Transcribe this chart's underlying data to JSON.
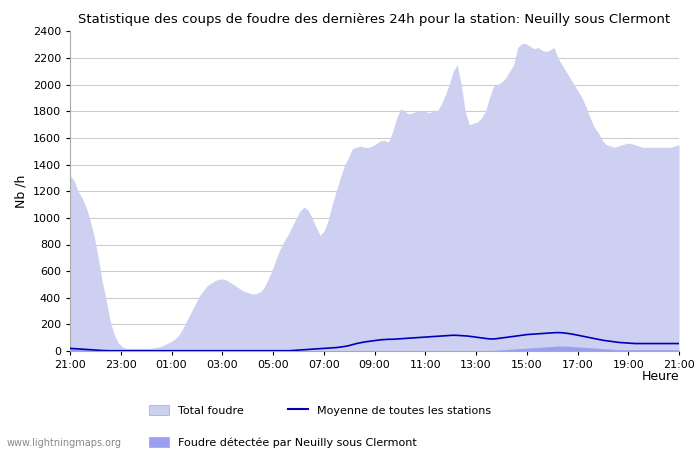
{
  "title": "Statistique des coups de foudre des dernières 24h pour la station: Neuilly sous Clermont",
  "xlabel": "Heure",
  "ylabel": "Nb /h",
  "xlim": [
    0,
    24
  ],
  "ylim": [
    0,
    2400
  ],
  "yticks": [
    0,
    200,
    400,
    600,
    800,
    1000,
    1200,
    1400,
    1600,
    1800,
    2000,
    2200,
    2400
  ],
  "xtick_labels": [
    "21:00",
    "23:00",
    "01:00",
    "03:00",
    "05:00",
    "07:00",
    "09:00",
    "11:00",
    "13:00",
    "15:00",
    "17:00",
    "19:00",
    "21:00"
  ],
  "xtick_positions": [
    0,
    2,
    4,
    6,
    8,
    10,
    12,
    14,
    16,
    18,
    20,
    22,
    24
  ],
  "bg_color": "#ffffff",
  "grid_color": "#cccccc",
  "total_color": "#cdd0f0",
  "local_color": "#9aa0f0",
  "mean_color": "#0000bb",
  "watermark": "www.lightningmaps.org",
  "total_foudre": [
    1320,
    1280,
    1200,
    1150,
    1080,
    980,
    860,
    700,
    520,
    380,
    220,
    120,
    60,
    30,
    20,
    20,
    20,
    20,
    20,
    20,
    20,
    25,
    30,
    40,
    55,
    70,
    90,
    120,
    170,
    230,
    290,
    350,
    410,
    450,
    490,
    510,
    530,
    540,
    540,
    530,
    510,
    490,
    470,
    450,
    440,
    430,
    430,
    440,
    470,
    530,
    600,
    680,
    760,
    820,
    870,
    930,
    990,
    1050,
    1080,
    1060,
    1000,
    930,
    870,
    900,
    980,
    1100,
    1200,
    1300,
    1390,
    1450,
    1520,
    1530,
    1540,
    1530,
    1530,
    1540,
    1560,
    1580,
    1580,
    1570,
    1650,
    1750,
    1820,
    1800,
    1780,
    1790,
    1800,
    1800,
    1800,
    1790,
    1800,
    1800,
    1850,
    1920,
    2000,
    2100,
    2150,
    2000,
    1800,
    1700,
    1710,
    1720,
    1750,
    1800,
    1900,
    1990,
    2000,
    2020,
    2050,
    2100,
    2150,
    2280,
    2310,
    2310,
    2290,
    2270,
    2280,
    2260,
    2250,
    2260,
    2280,
    2200,
    2150,
    2100,
    2050,
    2000,
    1950,
    1900,
    1830,
    1750,
    1680,
    1640,
    1580,
    1550,
    1540,
    1530,
    1540,
    1550,
    1560,
    1560,
    1550,
    1540,
    1530,
    1530,
    1530,
    1530,
    1530,
    1530,
    1530,
    1530,
    1540,
    1550
  ],
  "local_foudre": [
    20,
    18,
    16,
    14,
    12,
    10,
    8,
    6,
    4,
    3,
    2,
    2,
    2,
    2,
    2,
    2,
    2,
    2,
    2,
    2,
    2,
    2,
    2,
    2,
    2,
    2,
    2,
    2,
    2,
    2,
    2,
    2,
    2,
    2,
    2,
    2,
    2,
    2,
    2,
    2,
    2,
    2,
    2,
    2,
    2,
    2,
    2,
    2,
    2,
    2,
    2,
    2,
    2,
    2,
    2,
    2,
    2,
    2,
    2,
    2,
    2,
    2,
    2,
    2,
    2,
    2,
    2,
    2,
    2,
    2,
    2,
    2,
    2,
    2,
    2,
    2,
    2,
    2,
    2,
    2,
    2,
    2,
    2,
    2,
    2,
    2,
    2,
    2,
    2,
    2,
    2,
    2,
    2,
    2,
    2,
    2,
    2,
    2,
    2,
    2,
    2,
    2,
    2,
    2,
    2,
    2,
    4,
    6,
    8,
    10,
    12,
    14,
    16,
    18,
    20,
    22,
    24,
    26,
    28,
    30,
    32,
    34,
    36,
    38,
    38,
    36,
    34,
    32,
    30,
    28,
    26,
    24,
    22,
    20,
    18,
    16,
    14,
    12,
    10,
    10,
    10,
    10,
    10,
    10,
    10,
    10,
    10,
    10,
    10,
    10,
    10,
    10,
    10,
    10
  ],
  "mean_foudre": [
    20,
    18,
    16,
    14,
    12,
    10,
    8,
    6,
    4,
    3,
    2,
    2,
    2,
    2,
    2,
    2,
    2,
    2,
    2,
    2,
    2,
    2,
    2,
    2,
    2,
    2,
    2,
    2,
    2,
    2,
    2,
    2,
    2,
    2,
    2,
    2,
    2,
    2,
    2,
    2,
    2,
    2,
    2,
    2,
    2,
    2,
    2,
    2,
    2,
    2,
    2,
    2,
    2,
    2,
    2,
    2,
    4,
    6,
    8,
    10,
    12,
    14,
    16,
    18,
    20,
    22,
    24,
    26,
    30,
    34,
    40,
    48,
    56,
    62,
    68,
    72,
    76,
    80,
    84,
    86,
    88,
    88,
    90,
    92,
    94,
    96,
    98,
    100,
    102,
    104,
    106,
    108,
    110,
    112,
    114,
    116,
    118,
    118,
    116,
    114,
    112,
    108,
    104,
    100,
    96,
    92,
    90,
    92,
    96,
    100,
    104,
    108,
    112,
    116,
    120,
    124,
    126,
    128,
    130,
    132,
    134,
    136,
    138,
    138,
    136,
    132,
    128,
    122,
    116,
    110,
    104,
    98,
    92,
    86,
    80,
    76,
    72,
    68,
    64,
    62,
    60,
    58,
    56,
    56,
    56,
    56,
    56,
    56,
    56,
    56,
    56,
    56,
    56,
    56
  ]
}
